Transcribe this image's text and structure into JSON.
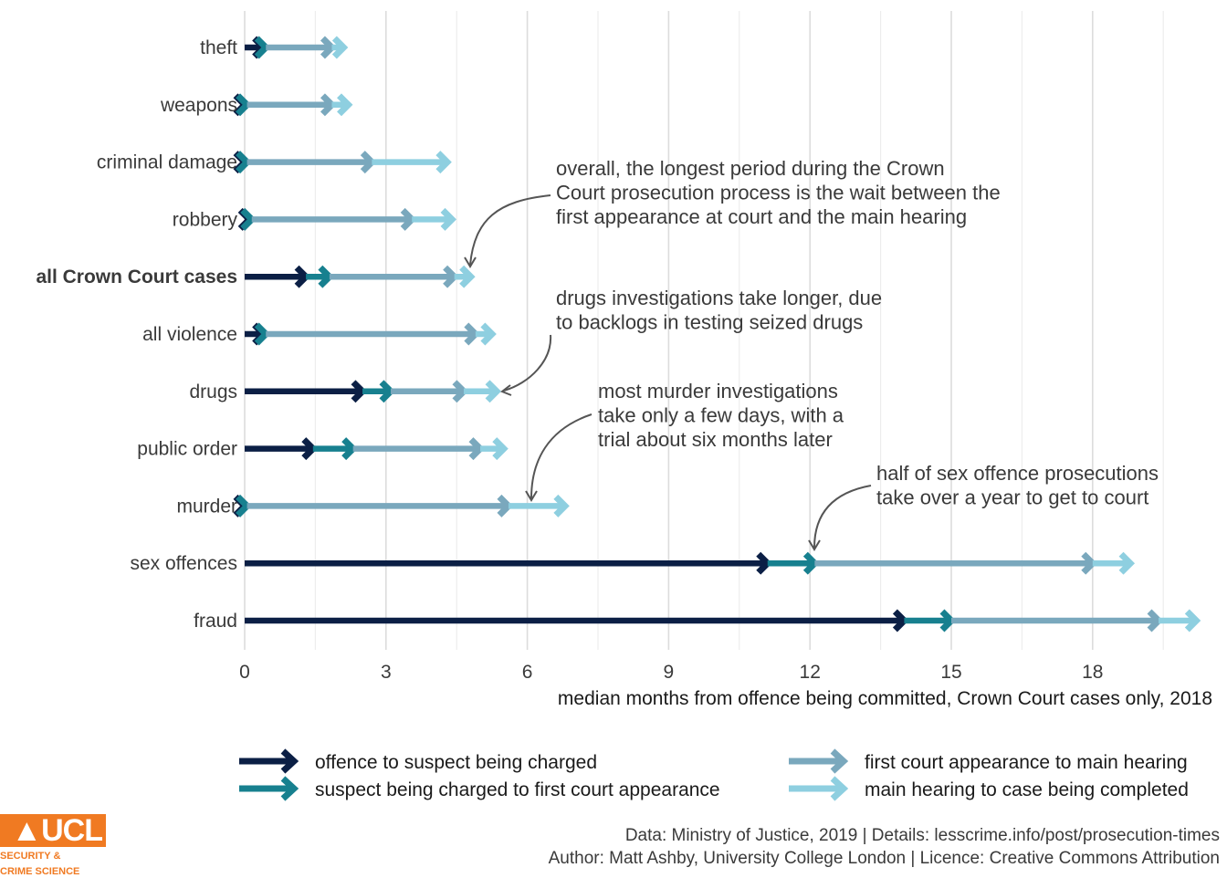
{
  "chart_data": {
    "type": "bar",
    "subtype": "stacked-arrow-segments",
    "xlabel": "median months from offence being committed, Crown Court cases only, 2018",
    "xlim": [
      0,
      20
    ],
    "xticks": [
      0,
      3,
      6,
      9,
      12,
      15,
      18
    ],
    "grid": true,
    "legend_position": "bottom",
    "stages": [
      {
        "name": "offence to suspect being charged",
        "color": "#0b1f45"
      },
      {
        "name": "suspect being charged to first court appearance",
        "color": "#17808f"
      },
      {
        "name": "first court appearance to main hearing",
        "color": "#7aa8bd"
      },
      {
        "name": "main hearing to case being completed",
        "color": "#8ecfe0"
      }
    ],
    "categories": [
      {
        "label": "theft",
        "bold": false,
        "ends": [
          0.4,
          0.45,
          1.85,
          2.1
        ]
      },
      {
        "label": "weapons",
        "bold": false,
        "ends": [
          0.0,
          0.05,
          1.85,
          2.2
        ]
      },
      {
        "label": "criminal damage",
        "bold": false,
        "ends": [
          0.0,
          0.05,
          2.7,
          4.3
        ]
      },
      {
        "label": "robbery",
        "bold": false,
        "ends": [
          0.1,
          0.15,
          3.55,
          4.4
        ]
      },
      {
        "label": "all Crown Court cases",
        "bold": true,
        "ends": [
          1.3,
          1.8,
          4.45,
          4.8
        ]
      },
      {
        "label": "all violence",
        "bold": false,
        "ends": [
          0.4,
          0.45,
          4.9,
          5.25
        ]
      },
      {
        "label": "drugs",
        "bold": false,
        "ends": [
          2.5,
          3.1,
          4.65,
          5.35
        ]
      },
      {
        "label": "public order",
        "bold": false,
        "ends": [
          1.45,
          2.3,
          5.0,
          5.5
        ]
      },
      {
        "label": "murder",
        "bold": false,
        "ends": [
          0.0,
          0.05,
          5.6,
          6.8
        ]
      },
      {
        "label": "sex offences",
        "bold": false,
        "ends": [
          11.1,
          12.1,
          18.0,
          18.8
        ]
      },
      {
        "label": "fraud",
        "bold": false,
        "ends": [
          14.0,
          15.0,
          19.4,
          20.2
        ]
      }
    ],
    "annotations": [
      {
        "lines": [
          "overall, the longest period during the Crown",
          "Court prosecution process is the wait between the",
          "first appearance at court and the main hearing"
        ],
        "points_to": "all Crown Court cases"
      },
      {
        "lines": [
          "drugs investigations take longer, due",
          "to backlogs in testing seized drugs"
        ],
        "points_to": "drugs"
      },
      {
        "lines": [
          "most murder investigations",
          "take only a few days, with a",
          "trial about six months later"
        ],
        "points_to": "murder"
      },
      {
        "lines": [
          "half of sex offence prosecutions",
          "take over a year to get to court"
        ],
        "points_to": "sex offences"
      }
    ]
  },
  "caption": {
    "line1": "Data: Ministry of Justice, 2019 |  Details: lesscrime.info/post/prosecution-times",
    "line2": "Author: Matt Ashby, University College London |  Licence: Creative Commons Attribution"
  },
  "logo": {
    "wordmark": "▲UCL",
    "sub1": "SECURITY &",
    "sub2": "CRIME SCIENCE"
  }
}
